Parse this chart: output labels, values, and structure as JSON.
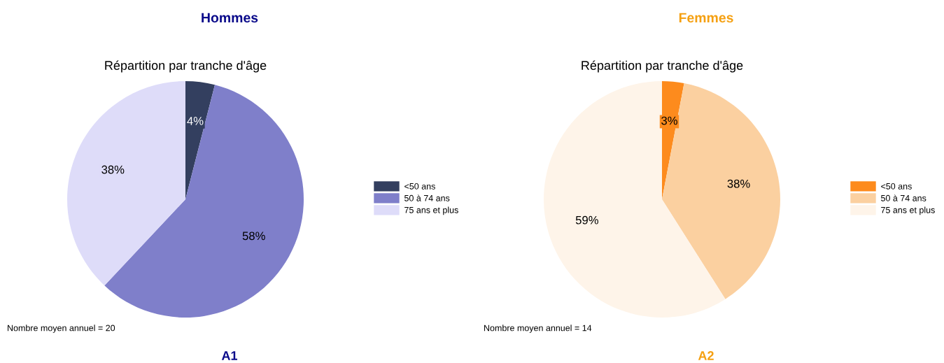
{
  "chart_data": [
    {
      "type": "pie",
      "title": "Hommes",
      "subtitle": "Répartition par tranche d'âge",
      "categories": [
        "<50 ans",
        "50 à 74 ans",
        "75 ans et plus"
      ],
      "values": [
        4,
        58,
        38
      ],
      "colors": [
        "#333f5f",
        "#7f7fca",
        "#dedcf9"
      ],
      "value_labels": [
        "4%",
        "58%",
        "38%"
      ],
      "legend": "right",
      "annotations": [
        "Nombre moyen annuel = 20",
        "A1"
      ]
    },
    {
      "type": "pie",
      "title": "Femmes",
      "subtitle": "Répartition par tranche d'âge",
      "categories": [
        "<50 ans",
        "50 à 74 ans",
        "75 ans et plus"
      ],
      "values": [
        3,
        38,
        59
      ],
      "colors": [
        "#fd8b1d",
        "#fbd0a0",
        "#fef4e9"
      ],
      "value_labels": [
        "3%",
        "38%",
        "59%"
      ],
      "legend": "right",
      "annotations": [
        "Nombre moyen annuel = 14",
        "A2"
      ]
    }
  ]
}
